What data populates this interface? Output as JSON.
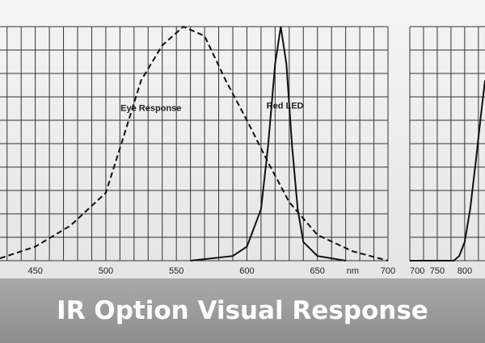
{
  "title": "IR Option Visual Response",
  "chart_data": [
    {
      "type": "line",
      "xlim": [
        425,
        700
      ],
      "ylim": [
        0,
        1
      ],
      "xticks": [
        450,
        500,
        550,
        600,
        650,
        700
      ],
      "xgrid": [
        430,
        440,
        450,
        460,
        470,
        480,
        490,
        500,
        510,
        520,
        530,
        540,
        550,
        560,
        570,
        580,
        590,
        600,
        610,
        620,
        630,
        640,
        650,
        660,
        670,
        680,
        690,
        700
      ],
      "ygrid": [
        0,
        0.1,
        0.2,
        0.3,
        0.4,
        0.5,
        0.6,
        0.7,
        0.8,
        0.9,
        1
      ],
      "x_unit": "nm",
      "x_unit_at": 675,
      "annotations": [
        {
          "text": "Eye Response",
          "x": 532,
          "y": 0.65
        },
        {
          "text": "Red LED",
          "x": 627,
          "y": 0.66
        }
      ],
      "series": [
        {
          "name": "Eye Response",
          "color": "#111111",
          "dashed": true,
          "x": [
            425,
            450,
            475,
            500,
            510,
            525,
            540,
            555,
            570,
            585,
            600,
            615,
            630,
            650,
            675,
            700
          ],
          "values": [
            0.01,
            0.06,
            0.15,
            0.29,
            0.48,
            0.77,
            0.92,
            1.0,
            0.96,
            0.77,
            0.6,
            0.42,
            0.25,
            0.11,
            0.04,
            0
          ]
        },
        {
          "name": "Red LED",
          "color": "#111111",
          "dashed": false,
          "x": [
            560,
            590,
            600,
            610,
            615,
            620,
            624,
            628,
            632,
            636,
            640,
            650,
            670
          ],
          "values": [
            0,
            0.02,
            0.06,
            0.22,
            0.49,
            0.84,
            1.0,
            0.84,
            0.49,
            0.22,
            0.08,
            0.02,
            0
          ]
        }
      ]
    },
    {
      "type": "line",
      "xlim": [
        700,
        837
      ],
      "ylim": [
        0,
        1
      ],
      "xticks": [
        700,
        750,
        800
      ],
      "xgrid": [
        700,
        725,
        750,
        775,
        800,
        825
      ],
      "ygrid": [
        0,
        0.1,
        0.2,
        0.3,
        0.4,
        0.5,
        0.6,
        0.7,
        0.8,
        0.9,
        1
      ],
      "series": [
        {
          "color": "#111111",
          "dashed": false,
          "x": [
            700,
            780,
            790,
            800,
            810,
            820,
            830,
            837
          ],
          "values": [
            0,
            0,
            0.02,
            0.08,
            0.22,
            0.42,
            0.63,
            0.77
          ]
        }
      ]
    }
  ]
}
